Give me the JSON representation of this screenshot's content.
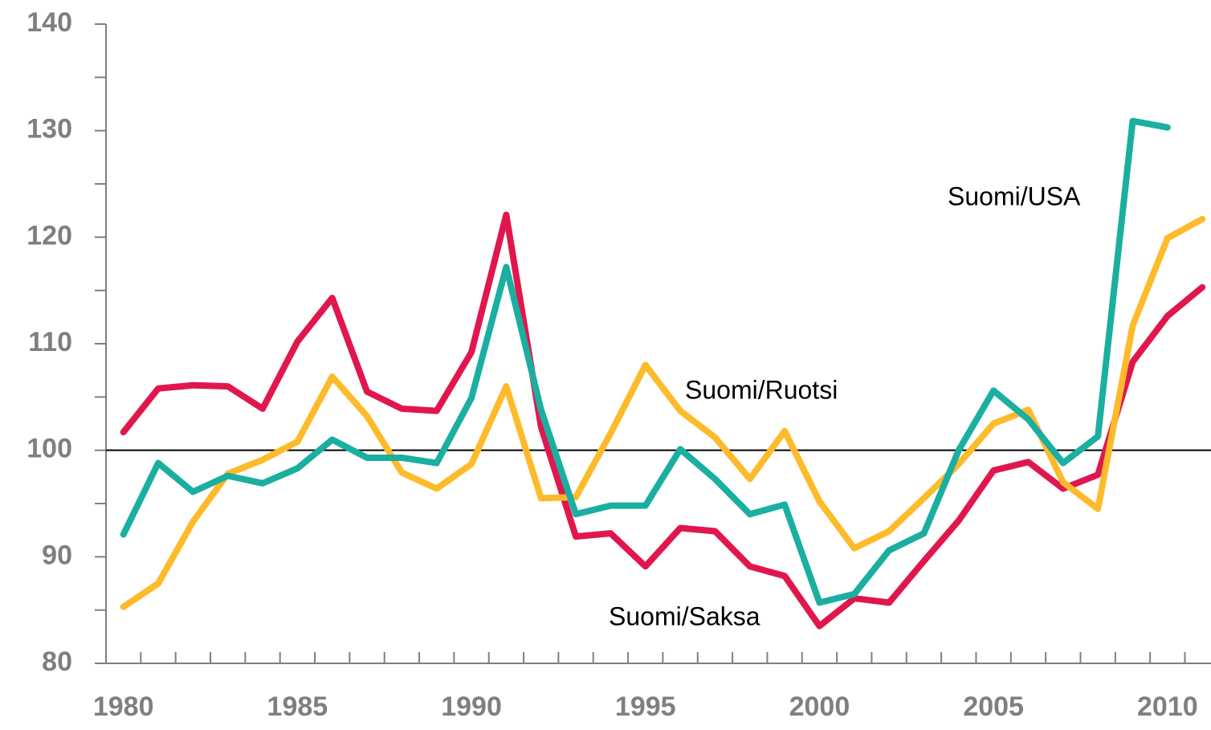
{
  "chart_data": {
    "type": "line",
    "x": [
      1980,
      1981,
      1982,
      1983,
      1984,
      1985,
      1986,
      1987,
      1988,
      1989,
      1990,
      1991,
      1992,
      1993,
      1994,
      1995,
      1996,
      1997,
      1998,
      1999,
      2000,
      2001,
      2002,
      2003,
      2004,
      2005,
      2006,
      2007,
      2008,
      2009,
      2010,
      2011
    ],
    "series": [
      {
        "name": "Suomi/Saksa",
        "color": "#e0174d",
        "values": [
          101.7,
          105.8,
          106.1,
          106.0,
          103.9,
          110.2,
          114.3,
          105.5,
          103.9,
          103.7,
          109.2,
          122.1,
          102.2,
          91.9,
          92.2,
          89.1,
          92.7,
          92.4,
          89.1,
          88.2,
          83.5,
          86.1,
          85.7,
          89.6,
          93.4,
          98.1,
          98.9,
          96.4,
          97.7,
          108.3,
          112.6,
          115.3
        ]
      },
      {
        "name": "Suomi/Ruotsi",
        "color": "#fdbb2b",
        "values": [
          85.3,
          87.5,
          93.3,
          97.8,
          99.1,
          100.8,
          106.9,
          103.2,
          97.9,
          96.4,
          98.7,
          106.0,
          95.5,
          95.6,
          101.6,
          108.0,
          103.7,
          101.2,
          97.3,
          101.8,
          95.2,
          90.8,
          92.4,
          95.5,
          98.7,
          102.5,
          103.8,
          97.0,
          94.5,
          111.7,
          119.9,
          121.7
        ]
      },
      {
        "name": "Suomi/USA",
        "color": "#1aafa0",
        "values": [
          92.1,
          98.8,
          96.1,
          97.6,
          96.9,
          98.3,
          101.0,
          99.3,
          99.3,
          98.8,
          104.9,
          117.2,
          103.8,
          94.0,
          94.8,
          94.8,
          100.1,
          97.3,
          94.0,
          94.9,
          85.7,
          86.5,
          90.6,
          92.2,
          100.0,
          105.6,
          102.9,
          98.8,
          101.3,
          130.9,
          130.3,
          null
        ]
      }
    ],
    "xlim": [
      1979.5,
      2011.25
    ],
    "xticks": [
      1980,
      1985,
      1990,
      1995,
      2000,
      2005,
      2010
    ],
    "xminorticks": [
      1980.5,
      1981.5,
      1982.5,
      1983.5,
      1984.5,
      1985.5,
      1986.5,
      1987.5,
      1988.5,
      1989.5,
      1990.5,
      1991.5,
      1992.5,
      1993.5,
      1994.5,
      1995.5,
      1996.5,
      1997.5,
      1998.5,
      1999.5,
      2000.5,
      2001.5,
      2002.5,
      2003.5,
      2004.5,
      2005.5,
      2006.5,
      2007.5,
      2008.5,
      2009.5,
      2010.5
    ],
    "ylim": [
      80,
      140
    ],
    "yticks": [
      80,
      90,
      100,
      110,
      120,
      130,
      140
    ],
    "yminorticks": [
      85,
      95,
      105,
      115,
      125,
      135
    ],
    "reference_line": 100
  }
}
